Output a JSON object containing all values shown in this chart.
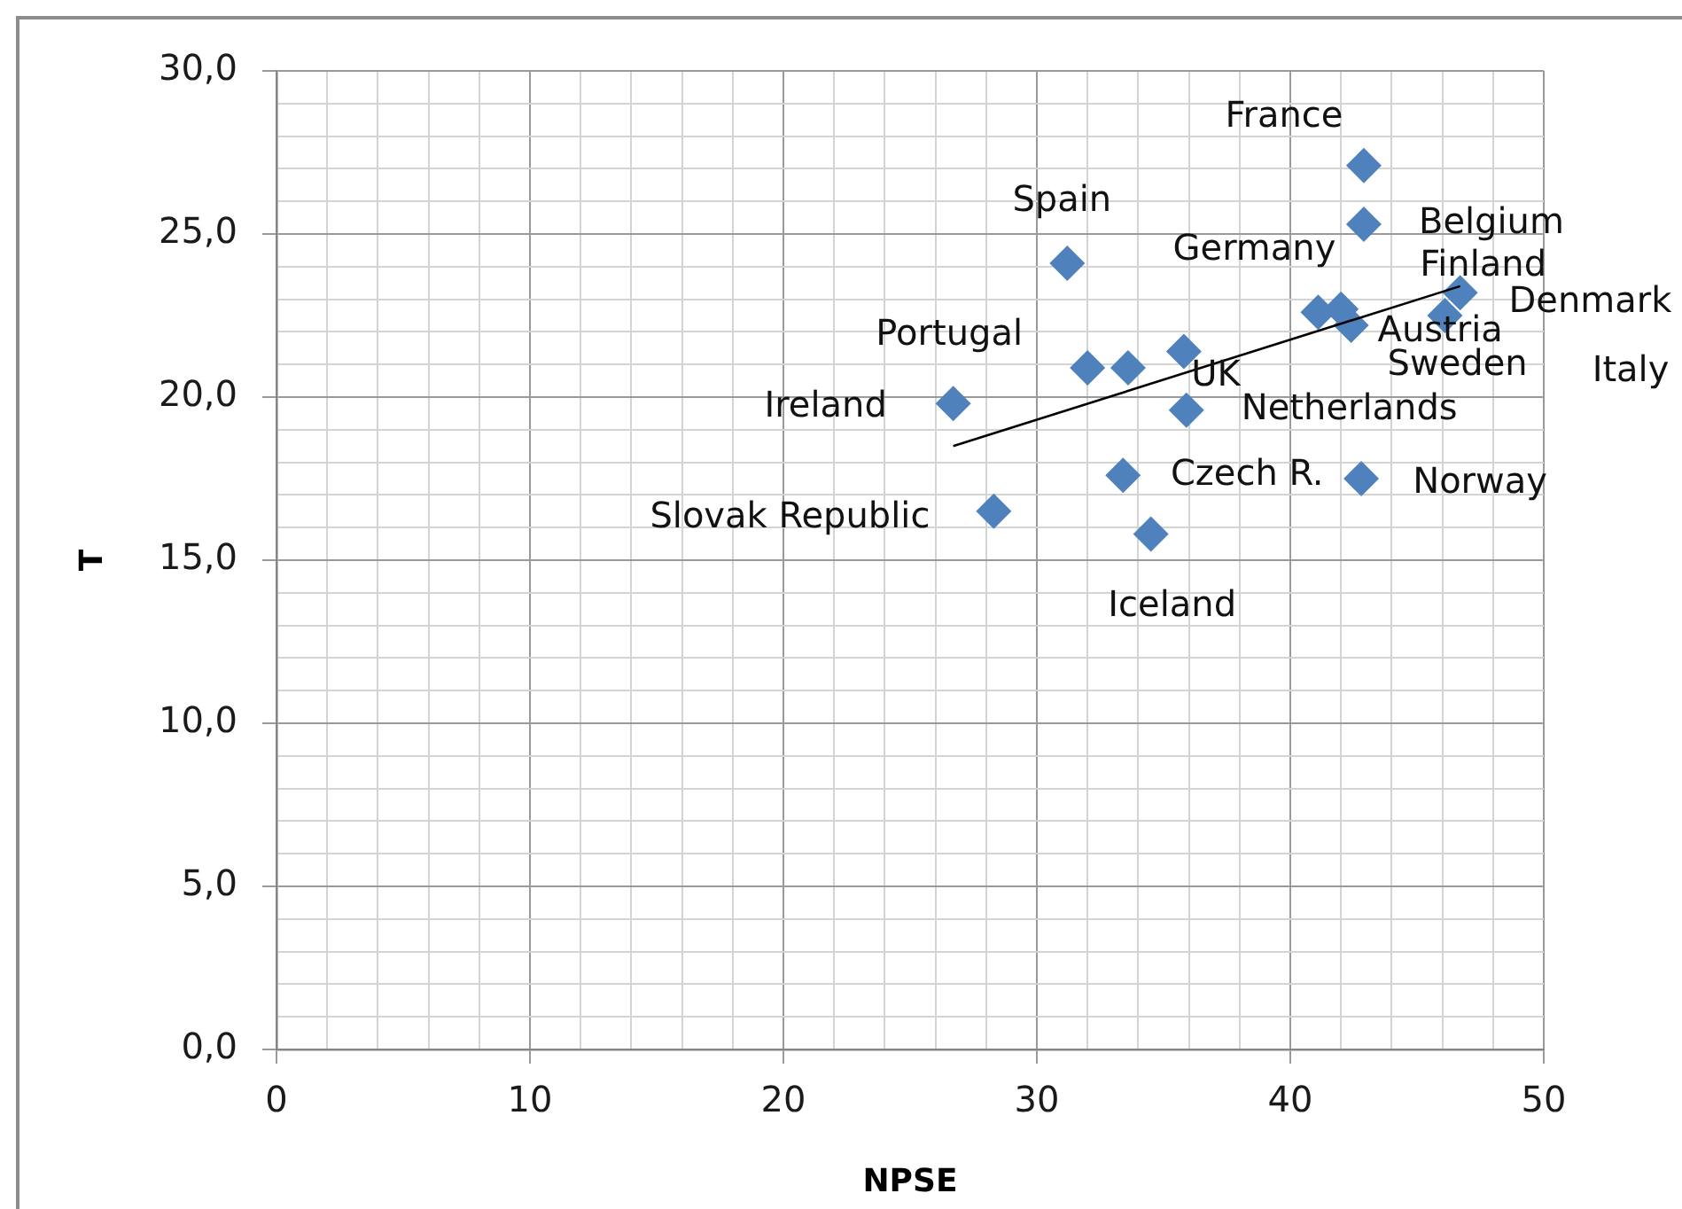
{
  "chart_data": {
    "type": "scatter",
    "xlabel": "NPSE",
    "ylabel": "T",
    "xlim": [
      0,
      50
    ],
    "ylim": [
      0,
      30
    ],
    "xticks": [
      0,
      {
        "value": 2,
        "label": null
      },
      {
        "value": 4,
        "label": null
      },
      {
        "value": 6,
        "label": null
      },
      {
        "value": 8,
        "label": null
      },
      10,
      {
        "value": 12,
        "label": null
      },
      {
        "value": 14,
        "label": null
      },
      {
        "value": 16,
        "label": null
      },
      {
        "value": 18,
        "label": null
      },
      20,
      {
        "value": 22,
        "label": null
      },
      {
        "value": 24,
        "label": null
      },
      {
        "value": 26,
        "label": null
      },
      {
        "value": 28,
        "label": null
      },
      30,
      {
        "value": 32,
        "label": null
      },
      {
        "value": 34,
        "label": null
      },
      {
        "value": 36,
        "label": null
      },
      {
        "value": 38,
        "label": null
      },
      40,
      {
        "value": 42,
        "label": null
      },
      {
        "value": 44,
        "label": null
      },
      {
        "value": 46,
        "label": null
      },
      {
        "value": 48,
        "label": null
      },
      50
    ],
    "yticks": [
      {
        "value": 0,
        "label": "0,0"
      },
      {
        "value": 1,
        "label": null
      },
      {
        "value": 2,
        "label": null
      },
      {
        "value": 3,
        "label": null
      },
      {
        "value": 4,
        "label": null
      },
      {
        "value": 5,
        "label": "5,0"
      },
      {
        "value": 6,
        "label": null
      },
      {
        "value": 7,
        "label": null
      },
      {
        "value": 8,
        "label": null
      },
      {
        "value": 9,
        "label": null
      },
      {
        "value": 10,
        "label": "10,0"
      },
      {
        "value": 11,
        "label": null
      },
      {
        "value": 12,
        "label": null
      },
      {
        "value": 13,
        "label": null
      },
      {
        "value": 14,
        "label": null
      },
      {
        "value": 15,
        "label": "15,0"
      },
      {
        "value": 16,
        "label": null
      },
      {
        "value": 17,
        "label": null
      },
      {
        "value": 18,
        "label": null
      },
      {
        "value": 19,
        "label": null
      },
      {
        "value": 20,
        "label": "20,0"
      },
      {
        "value": 21,
        "label": null
      },
      {
        "value": 22,
        "label": null
      },
      {
        "value": 23,
        "label": null
      },
      {
        "value": 24,
        "label": null
      },
      {
        "value": 25,
        "label": "25,0"
      },
      {
        "value": 26,
        "label": null
      },
      {
        "value": 27,
        "label": null
      },
      {
        "value": 28,
        "label": null
      },
      {
        "value": 29,
        "label": null
      },
      {
        "value": 30,
        "label": "30,0"
      }
    ],
    "grid": true,
    "marker": "diamond",
    "series": [
      {
        "type": "scatter",
        "color": "#4f81bd",
        "x": [
          31.2,
          32.0,
          33.6,
          35.8,
          26.7,
          28.3,
          33.4,
          34.5,
          35.9,
          42.9,
          42.9,
          41.1,
          42.0,
          42.4,
          42.8,
          46.7,
          46.1
        ],
        "values": [
          24.1,
          20.9,
          20.9,
          21.4,
          19.8,
          16.5,
          17.6,
          15.8,
          19.6,
          27.1,
          25.3,
          22.6,
          22.7,
          22.2,
          17.5,
          23.2,
          22.5
        ]
      },
      {
        "type": "line",
        "color": "#000000",
        "marker": "none",
        "x": [
          26.7,
          46.7
        ],
        "values": [
          18.5,
          23.4
        ]
      }
    ],
    "annotations": [
      {
        "text": "Spain",
        "x": 31.2,
        "y": 24.1
      },
      {
        "text": "Portugal",
        "x": 32.0,
        "y": 20.9
      },
      {
        "text": "UK",
        "x": 35.8,
        "y": 21.4
      },
      {
        "text": "Ireland",
        "x": 26.7,
        "y": 19.8
      },
      {
        "text": "Slovak Republic",
        "x": 28.3,
        "y": 16.5
      },
      {
        "text": "Czech R.",
        "x": 33.4,
        "y": 17.6
      },
      {
        "text": "Iceland",
        "x": 34.5,
        "y": 15.8
      },
      {
        "text": "Netherlands",
        "x": 35.9,
        "y": 19.6
      },
      {
        "text": "France",
        "x": 42.9,
        "y": 27.1
      },
      {
        "text": "Belgium",
        "x": 42.9,
        "y": 25.3
      },
      {
        "text": "Germany",
        "x": 41.1,
        "y": 22.6
      },
      {
        "text": "Austria",
        "x": 42.0,
        "y": 22.7
      },
      {
        "text": "Sweden",
        "x": 42.4,
        "y": 22.2
      },
      {
        "text": "Norway",
        "x": 42.8,
        "y": 17.5
      },
      {
        "text": "Finland",
        "x": 46.7,
        "y": 23.2
      },
      {
        "text": "Denmark",
        "x": 46.1,
        "y": 22.5
      },
      "Italy"
    ]
  }
}
